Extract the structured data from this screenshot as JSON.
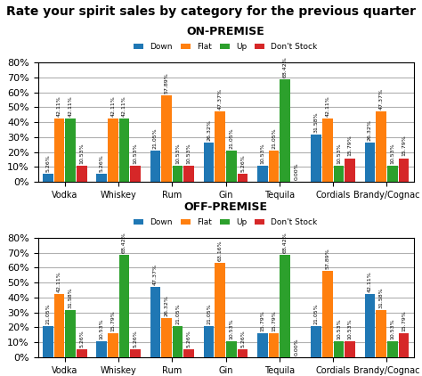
{
  "title": "Rate your spirit sales by category for the previous quarter",
  "chart_data": [
    {
      "type": "bar",
      "title": "ON-PREMISE",
      "categories": [
        "Vodka",
        "Whiskey",
        "Rum",
        "Gin",
        "Tequila",
        "Cordials",
        "Brandy/Cognac"
      ],
      "series": [
        {
          "name": "Down",
          "values": [
            5.26,
            5.26,
            21.05,
            26.32,
            10.53,
            31.58,
            26.32
          ],
          "value_labels": [
            "5.26%",
            "5.26%",
            "21.05%",
            "26.32%",
            "10.53%",
            "31.58%",
            "26.32%"
          ]
        },
        {
          "name": "Flat",
          "values": [
            42.11,
            42.11,
            57.89,
            47.37,
            21.05,
            42.11,
            47.37
          ],
          "value_labels": [
            "42.11%",
            "42.11%",
            "57.89%",
            "47.37%",
            "21.05%",
            "42.11%",
            "47.37%"
          ]
        },
        {
          "name": "Up",
          "values": [
            42.11,
            42.11,
            10.53,
            21.05,
            68.42,
            10.53,
            10.53
          ],
          "value_labels": [
            "42.11%",
            "42.11%",
            "10.53%",
            "21.05%",
            "68.42%",
            "10.53%",
            "10.53%"
          ]
        },
        {
          "name": "Don't Stock",
          "values": [
            10.53,
            10.53,
            10.53,
            5.26,
            0.0,
            15.79,
            15.79
          ],
          "value_labels": [
            "10.53%",
            "10.53%",
            "10.53%",
            "5.26%",
            "0.00%",
            "15.79%",
            "15.79%"
          ]
        }
      ],
      "ylim": [
        0,
        80
      ],
      "yticks": [
        {
          "value": 0,
          "label": "0%"
        },
        {
          "value": 10,
          "label": "10%"
        },
        {
          "value": 20,
          "label": "20%"
        },
        {
          "value": 30,
          "label": "30%"
        },
        {
          "value": 40,
          "label": "40%"
        },
        {
          "value": 50,
          "label": "50%"
        },
        {
          "value": 60,
          "label": "60%"
        },
        {
          "value": 70,
          "label": "70%"
        },
        {
          "value": 80,
          "label": "80%"
        }
      ],
      "grid": true,
      "data_labels": true
    },
    {
      "type": "bar",
      "title": "OFF-PREMISE",
      "categories": [
        "Vodka",
        "Whiskey",
        "Rum",
        "Gin",
        "Tequila",
        "Cordials",
        "Brandy/Cognac"
      ],
      "series": [
        {
          "name": "Down",
          "values": [
            21.05,
            10.53,
            47.37,
            21.05,
            15.79,
            21.05,
            42.11
          ],
          "value_labels": [
            "21.05%",
            "10.53%",
            "47.37%",
            "21.05%",
            "15.79%",
            "21.05%",
            "42.11%"
          ]
        },
        {
          "name": "Flat",
          "values": [
            42.11,
            15.79,
            26.32,
            63.16,
            15.79,
            57.89,
            31.58
          ],
          "value_labels": [
            "42.11%",
            "15.79%",
            "26.32%",
            "63.16%",
            "15.79%",
            "57.89%",
            "31.58%"
          ]
        },
        {
          "name": "Up",
          "values": [
            31.58,
            68.42,
            21.05,
            10.53,
            68.42,
            10.53,
            10.53
          ],
          "value_labels": [
            "31.58%",
            "68.42%",
            "21.05%",
            "10.53%",
            "68.42%",
            "10.53%",
            "10.53%"
          ]
        },
        {
          "name": "Don't Stock",
          "values": [
            5.26,
            5.26,
            5.26,
            5.26,
            0.0,
            10.53,
            15.79
          ],
          "value_labels": [
            "5.26%",
            "5.26%",
            "5.26%",
            "5.26%",
            "0.00%",
            "10.53%",
            "15.79%"
          ]
        }
      ],
      "ylim": [
        0,
        80
      ],
      "yticks": [
        {
          "value": 0,
          "label": "0%"
        },
        {
          "value": 10,
          "label": "10%"
        },
        {
          "value": 20,
          "label": "20%"
        },
        {
          "value": 30,
          "label": "30%"
        },
        {
          "value": 40,
          "label": "40%"
        },
        {
          "value": 50,
          "label": "50%"
        },
        {
          "value": 60,
          "label": "60%"
        },
        {
          "value": 70,
          "label": "70%"
        },
        {
          "value": 80,
          "label": "80%"
        }
      ],
      "grid": true,
      "data_labels": true
    }
  ]
}
